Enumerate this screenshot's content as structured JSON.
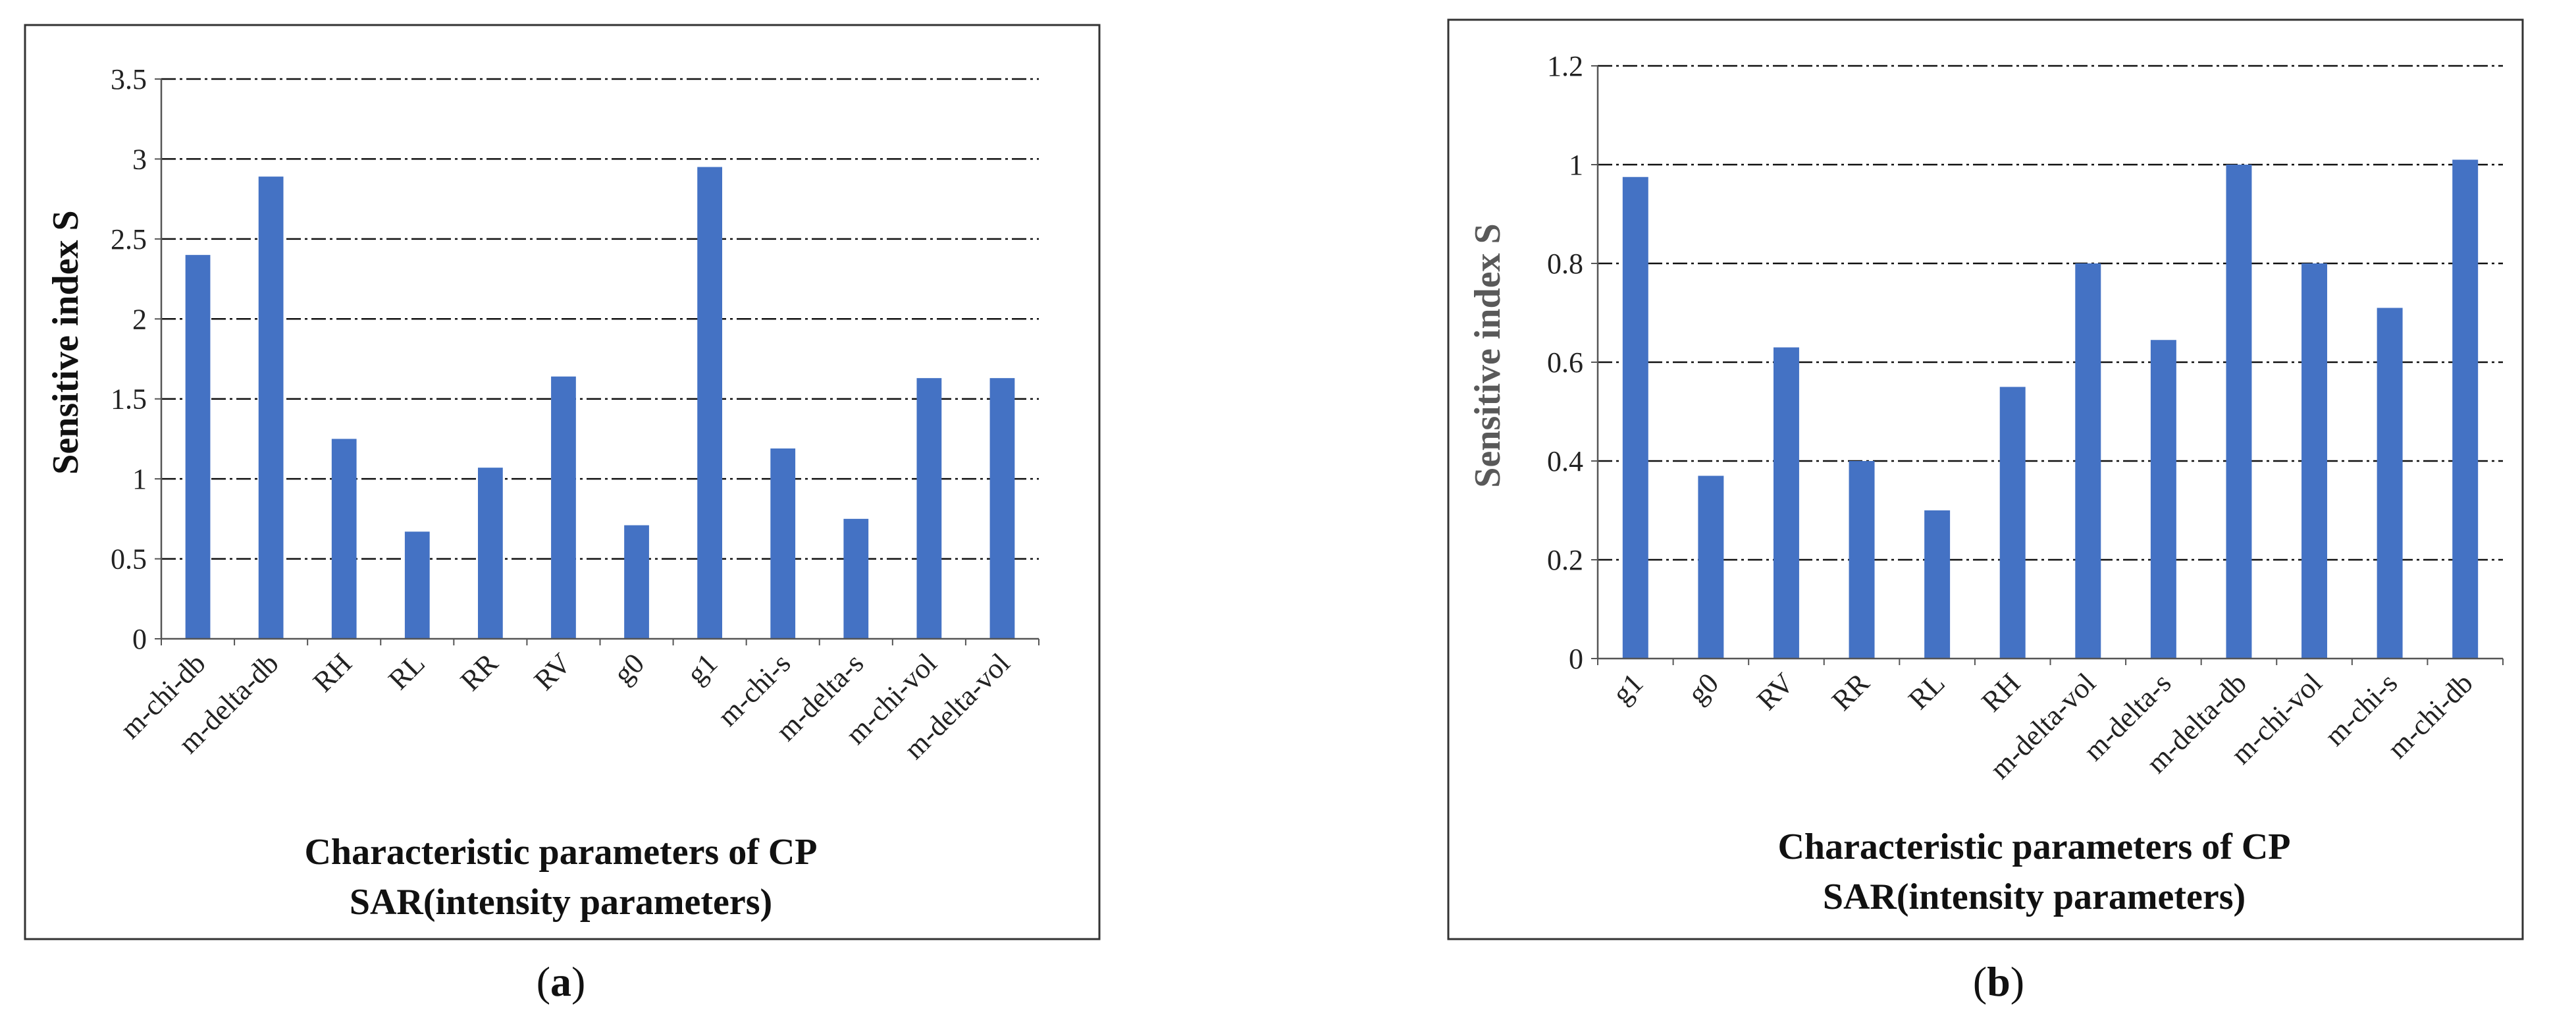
{
  "chart_data": [
    {
      "type": "bar",
      "panel": "a",
      "categories": [
        "m-chi-db",
        "m-delta-db",
        "RH",
        "RL",
        "RR",
        "RV",
        "g0",
        "g1",
        "m-chi-s",
        "m-delta-s",
        "m-chi-vol",
        "m-delta-vol"
      ],
      "values": [
        2.4,
        2.89,
        1.25,
        0.67,
        1.07,
        1.64,
        0.71,
        2.95,
        1.19,
        0.75,
        1.63,
        1.63
      ],
      "ylabel": "Sensitive index S",
      "xlabel_line1": "Characteristic parameters of CP",
      "xlabel_line2": "SAR(intensity parameters)",
      "ylim": [
        0,
        3.5
      ],
      "yticks": [
        "0",
        "0.5",
        "1",
        "1.5",
        "2",
        "2.5",
        "3",
        "3.5"
      ],
      "ytick_values": [
        0,
        0.5,
        1,
        1.5,
        2,
        2.5,
        3,
        3.5
      ],
      "bar_color": "#4472C4",
      "ylabel_color": "#111111",
      "caption_open": "(",
      "caption_letter": "a",
      "caption_close": ")"
    },
    {
      "type": "bar",
      "panel": "b",
      "categories": [
        "g1",
        "g0",
        "RV",
        "RR",
        "RL",
        "RH",
        "m-delta-vol",
        "m-delta-s",
        "m-delta-db",
        "m-chi-vol",
        "m-chi-s",
        "m-chi-db"
      ],
      "values": [
        0.975,
        0.37,
        0.63,
        0.4,
        0.3,
        0.55,
        0.8,
        0.645,
        1.0,
        0.8,
        0.71,
        1.01
      ],
      "ylabel": "Sensitive index S",
      "xlabel_line1": "Characteristic parameters of CP",
      "xlabel_line2": "SAR(intensity parameters)",
      "ylim": [
        0,
        1.2
      ],
      "yticks": [
        "0",
        "0.2",
        "0.4",
        "0.6",
        "0.8",
        "1",
        "1.2"
      ],
      "ytick_values": [
        0,
        0.2,
        0.4,
        0.6,
        0.8,
        1,
        1.2
      ],
      "bar_color": "#4472C4",
      "ylabel_color": "#595959",
      "caption_open": "(",
      "caption_letter": "b",
      "caption_close": ")"
    }
  ]
}
